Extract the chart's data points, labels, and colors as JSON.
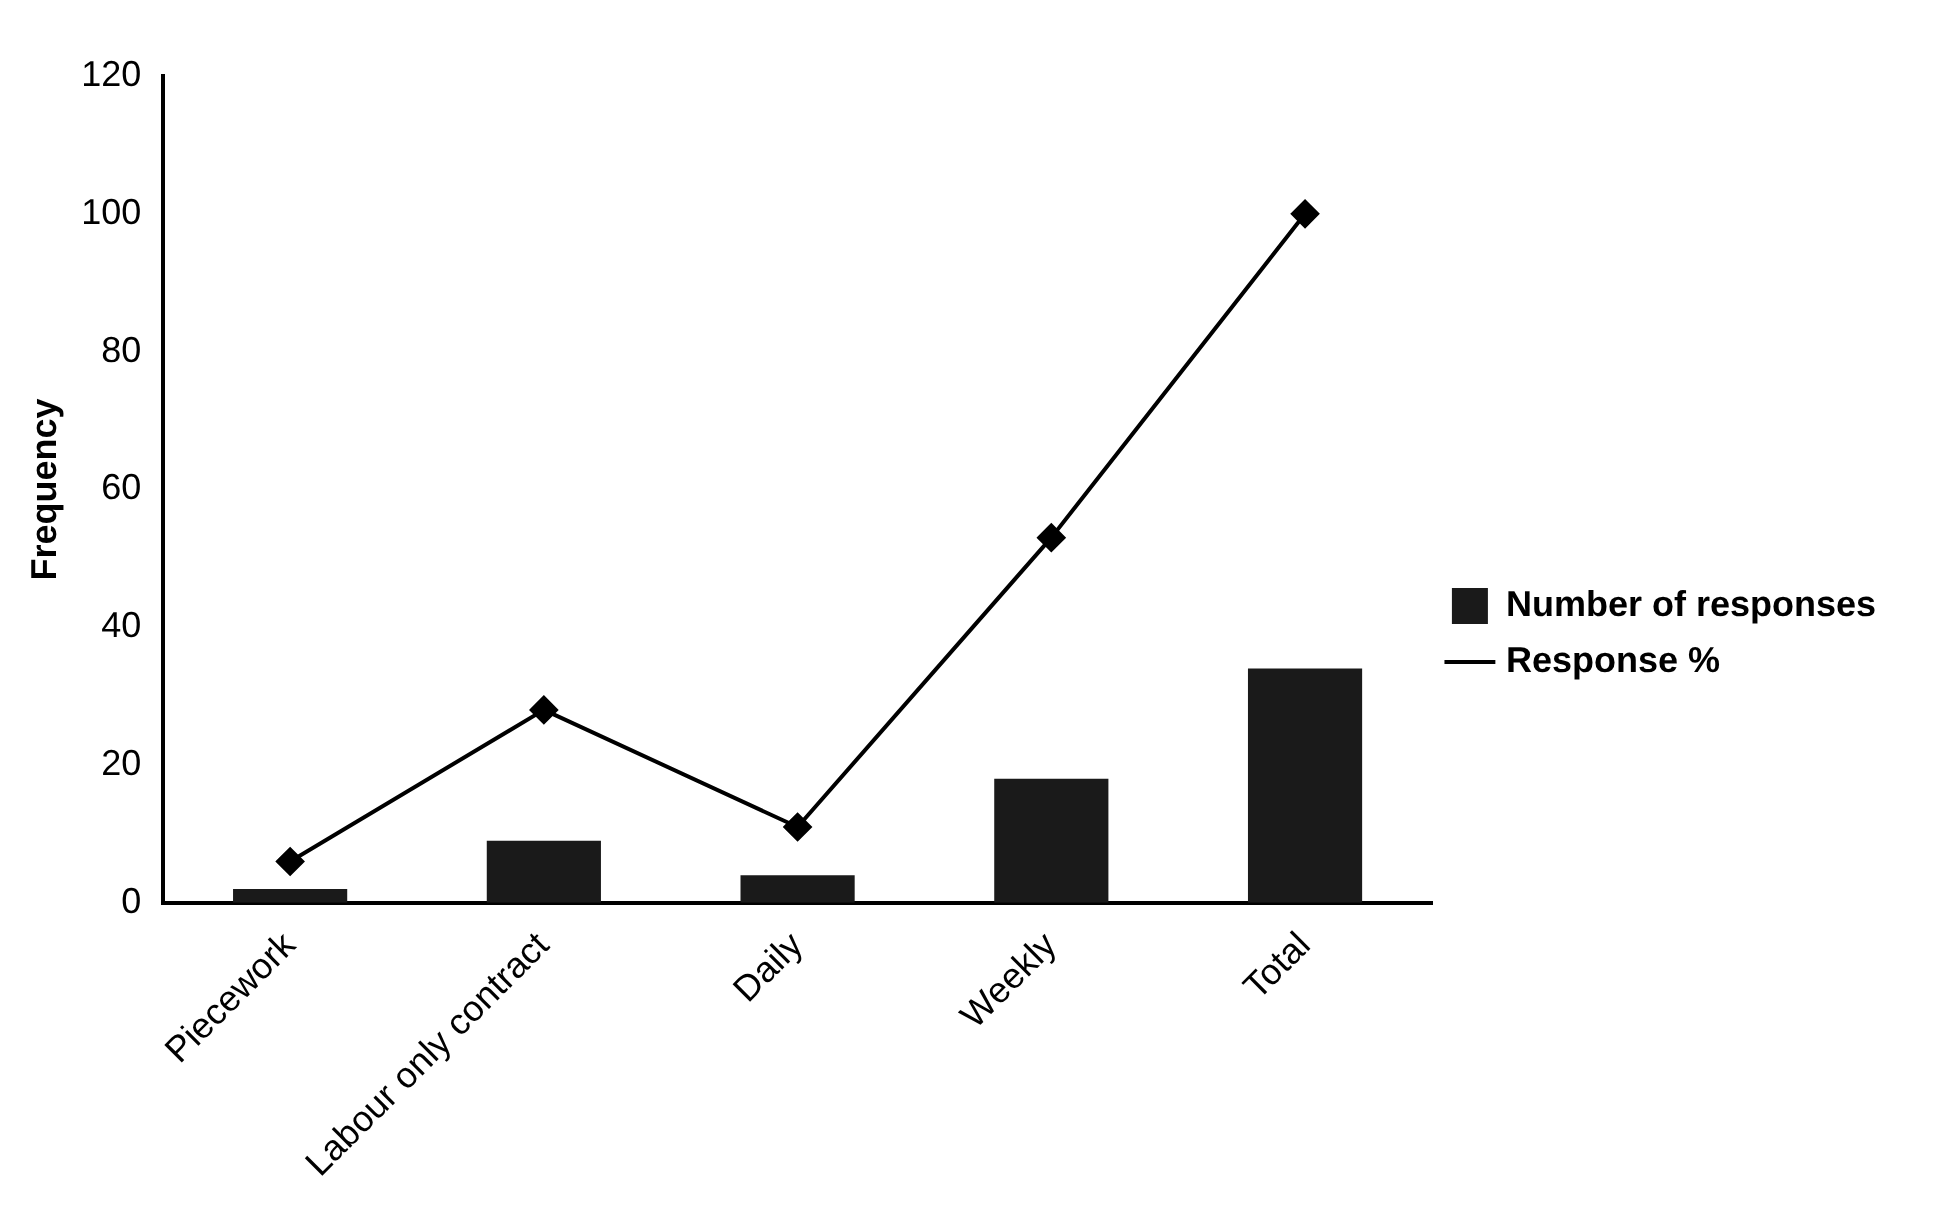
{
  "chart_data": {
    "type": "bar",
    "ylabel": "Frequency",
    "categories": [
      "Piecework",
      "Labour only contract",
      "Daily",
      "Weekly",
      "Total"
    ],
    "series": [
      {
        "name": "Number of responses",
        "color": "#1a1a1a",
        "values": [
          2,
          9,
          4,
          18,
          34
        ]
      },
      {
        "name": "Response %",
        "type": "line",
        "color": "#000000",
        "marker": "diamond",
        "values": [
          6,
          28,
          11,
          53,
          100
        ]
      }
    ],
    "ylim": [
      0,
      120
    ],
    "yticks": [
      0,
      20,
      40,
      60,
      80,
      100,
      120
    ],
    "grid": false,
    "legend": "right"
  }
}
